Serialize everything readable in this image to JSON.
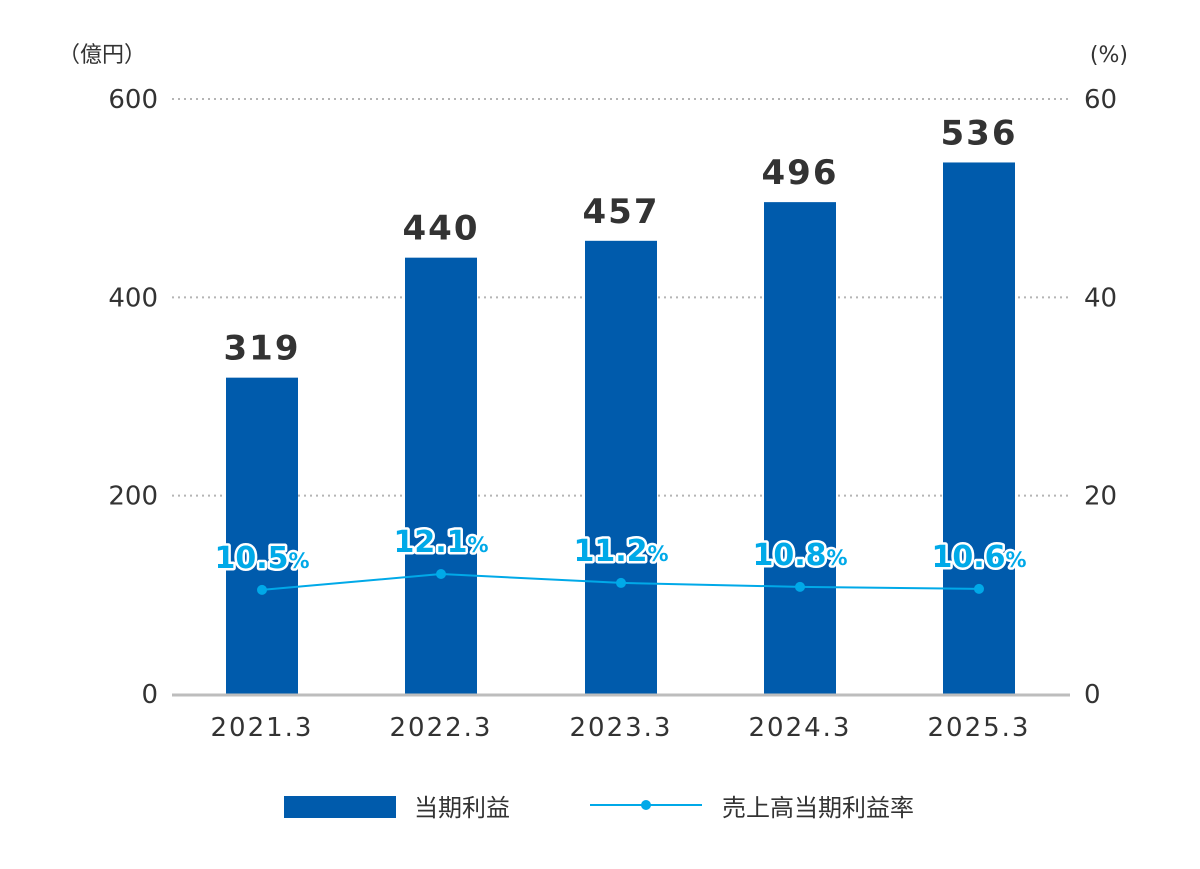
{
  "chart_data": {
    "type": "bar",
    "categories": [
      "2021.3",
      "2022.3",
      "2023.3",
      "2024.3",
      "2025.3"
    ],
    "series": [
      {
        "name": "当期利益",
        "kind": "bar",
        "axis": "left",
        "values": [
          319,
          440,
          457,
          496,
          536
        ],
        "labels": [
          "319",
          "440",
          "457",
          "496",
          "536"
        ],
        "color": "#005bac"
      },
      {
        "name": "売上高当期利益率",
        "kind": "line",
        "axis": "right",
        "values": [
          10.5,
          12.1,
          11.2,
          10.8,
          10.6
        ],
        "labels": [
          "10.5",
          "12.1",
          "11.2",
          "10.8",
          "10.6"
        ],
        "unit_suffix": "%",
        "color": "#00a9e8"
      }
    ],
    "y_left": {
      "unit": "（億円）",
      "ylim": [
        0,
        600
      ],
      "ticks": [
        "0",
        "200",
        "400",
        "600"
      ]
    },
    "y_right": {
      "unit": "(%)",
      "ylim": [
        0,
        60
      ],
      "ticks": [
        "0",
        "20",
        "40",
        "60"
      ]
    },
    "grid": true,
    "legend": {
      "placement": "bottom",
      "items": [
        "当期利益",
        "売上高当期利益率"
      ]
    }
  }
}
